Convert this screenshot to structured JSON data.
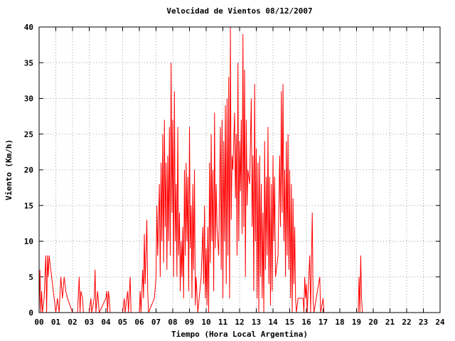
{
  "chart_data": {
    "type": "line",
    "title": "Velocidad de Vientos 08/12/2007",
    "xlabel": "Tiempo (Hora Local Argentina)",
    "ylabel": "Viento (Km/h)",
    "xlim": [
      0,
      24
    ],
    "ylim": [
      0,
      40
    ],
    "xticks": [
      {
        "value": 0,
        "label": "00"
      },
      {
        "value": 1,
        "label": "01"
      },
      {
        "value": 2,
        "label": "02"
      },
      {
        "value": 3,
        "label": "03"
      },
      {
        "value": 4,
        "label": "04"
      },
      {
        "value": 5,
        "label": "05"
      },
      {
        "value": 6,
        "label": "06"
      },
      {
        "value": 7,
        "label": "07"
      },
      {
        "value": 8,
        "label": "08"
      },
      {
        "value": 9,
        "label": "09"
      },
      10,
      11,
      12,
      13,
      14,
      15,
      16,
      17,
      18,
      19,
      20,
      21,
      22,
      23,
      24
    ],
    "yticks": [
      0,
      5,
      10,
      15,
      20,
      25,
      30,
      35,
      40
    ],
    "grid": true,
    "x": [
      0,
      0.05,
      0.1,
      0.15,
      0.2,
      0.3,
      0.4,
      0.45,
      0.5,
      0.55,
      0.6,
      0.7,
      0.8,
      0.9,
      1.0,
      1.1,
      1.2,
      1.3,
      1.4,
      1.5,
      1.6,
      1.7,
      2.0,
      2.3,
      2.4,
      2.45,
      2.5,
      2.6,
      2.65,
      3.0,
      3.1,
      3.15,
      3.3,
      3.35,
      3.4,
      3.5,
      3.6,
      4.0,
      4.05,
      4.1,
      4.15,
      4.2,
      4.25,
      5.0,
      5.1,
      5.15,
      5.3,
      5.35,
      5.45,
      5.5,
      6.0,
      6.05,
      6.1,
      6.2,
      6.25,
      6.3,
      6.35,
      6.45,
      6.5,
      6.55,
      6.9,
      7.0,
      7.05,
      7.1,
      7.2,
      7.25,
      7.3,
      7.35,
      7.4,
      7.45,
      7.5,
      7.55,
      7.6,
      7.65,
      7.7,
      7.75,
      7.8,
      7.85,
      7.9,
      7.95,
      8.0,
      8.05,
      8.1,
      8.15,
      8.2,
      8.25,
      8.3,
      8.35,
      8.4,
      8.45,
      8.5,
      8.55,
      8.6,
      8.65,
      8.7,
      8.75,
      8.8,
      8.85,
      8.9,
      8.95,
      9.0,
      9.05,
      9.1,
      9.15,
      9.2,
      9.25,
      9.3,
      9.35,
      9.4,
      9.5,
      9.7,
      9.8,
      9.85,
      9.9,
      9.95,
      10.0,
      10.05,
      10.1,
      10.15,
      10.2,
      10.25,
      10.3,
      10.35,
      10.4,
      10.45,
      10.5,
      10.55,
      10.6,
      10.65,
      10.75,
      10.85,
      10.9,
      10.95,
      11.0,
      11.05,
      11.1,
      11.15,
      11.2,
      11.25,
      11.3,
      11.35,
      11.4,
      11.45,
      11.5,
      11.55,
      11.6,
      11.7,
      11.75,
      11.8,
      11.85,
      11.9,
      11.95,
      12.0,
      12.05,
      12.1,
      12.15,
      12.2,
      12.25,
      12.3,
      12.35,
      12.4,
      12.45,
      12.5,
      12.6,
      12.7,
      12.75,
      12.8,
      12.85,
      12.9,
      12.95,
      13.0,
      13.05,
      13.1,
      13.15,
      13.2,
      13.25,
      13.3,
      13.35,
      13.4,
      13.45,
      13.5,
      13.55,
      13.6,
      13.65,
      13.7,
      13.75,
      13.8,
      13.85,
      13.9,
      13.95,
      14.0,
      14.05,
      14.1,
      14.15,
      14.3,
      14.4,
      14.45,
      14.5,
      14.55,
      14.6,
      14.65,
      14.7,
      14.75,
      14.8,
      14.85,
      14.9,
      14.95,
      15.0,
      15.05,
      15.1,
      15.15,
      15.2,
      15.25,
      15.3,
      15.35,
      15.4,
      15.5,
      15.8,
      15.85,
      15.9,
      15.95,
      16.0,
      16.05,
      16.1,
      16.2,
      16.25,
      16.35,
      16.4,
      16.45,
      16.8,
      16.85,
      17.0,
      17.05,
      19.1,
      19.15,
      19.2,
      19.25,
      19.3,
      19.35
    ],
    "series": [
      {
        "color": "#ff0000",
        "values": [
          0,
          6,
          0,
          3,
          0,
          2,
          8,
          0,
          8,
          5,
          8,
          6,
          4,
          2,
          0,
          2,
          0,
          5,
          2,
          5,
          3,
          2,
          0,
          0,
          5,
          0,
          3,
          2,
          0,
          0,
          2,
          0,
          2,
          6,
          0,
          3,
          0,
          2,
          3,
          0,
          3,
          2,
          0,
          0,
          2,
          0,
          3,
          0,
          5,
          0,
          0,
          3,
          0,
          6,
          2,
          11,
          4,
          13,
          3,
          0,
          2,
          5,
          15,
          8,
          18,
          5,
          21,
          10,
          25,
          7,
          27,
          12,
          21,
          6,
          22,
          10,
          26,
          8,
          35,
          14,
          27,
          5,
          31,
          10,
          18,
          5,
          26,
          8,
          14,
          3,
          10,
          5,
          12,
          2,
          20,
          8,
          21,
          10,
          19,
          3,
          26,
          9,
          15,
          2,
          18,
          6,
          20,
          1,
          5,
          0,
          5,
          12,
          4,
          15,
          2,
          9,
          1,
          12,
          0,
          21,
          7,
          25,
          10,
          20,
          3,
          28,
          9,
          18,
          12,
          8,
          26,
          6,
          27,
          2,
          24,
          10,
          29,
          4,
          30,
          8,
          33,
          2,
          40,
          13,
          22,
          20,
          28,
          16,
          25,
          8,
          35,
          10,
          24,
          17,
          27,
          11,
          39,
          12,
          34,
          5,
          27,
          15,
          20,
          18,
          30,
          12,
          22,
          3,
          32,
          10,
          23,
          2,
          21,
          0,
          22,
          5,
          18,
          2,
          14,
          0,
          24,
          6,
          19,
          8,
          26,
          4,
          19,
          1,
          18,
          3,
          22,
          10,
          19,
          5,
          8,
          22,
          12,
          31,
          14,
          32,
          10,
          20,
          5,
          24,
          8,
          25,
          6,
          20,
          2,
          18,
          0,
          16,
          4,
          12,
          2,
          0,
          2,
          2,
          0,
          5,
          2,
          4,
          0,
          3,
          8,
          0,
          14,
          2,
          0,
          5,
          0,
          2,
          0,
          0,
          5,
          0,
          8,
          2,
          0
        ]
      }
    ]
  }
}
